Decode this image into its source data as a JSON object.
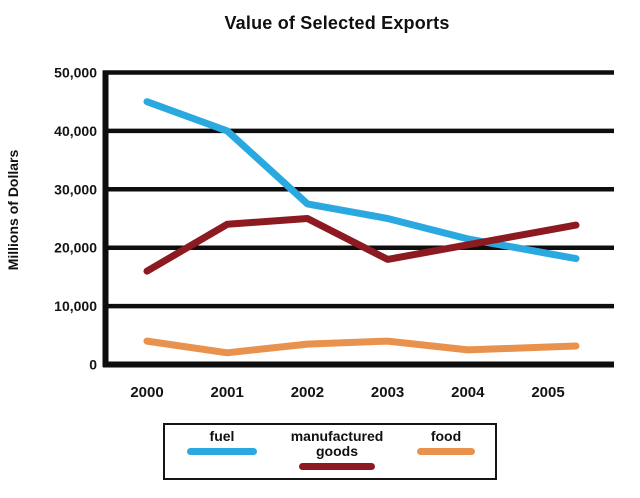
{
  "chart_data": {
    "type": "line",
    "title": "Value of Selected Exports",
    "xlabel": "",
    "ylabel": "Millions of Dollars",
    "x": [
      2000,
      2001,
      2002,
      2003,
      2004,
      2005
    ],
    "x_tick_labels": [
      "2000",
      "2001",
      "2002",
      "2003",
      "2004",
      "2005"
    ],
    "y_ticks": [
      0,
      10000,
      20000,
      30000,
      40000,
      50000
    ],
    "y_tick_labels": [
      "0",
      "10,000",
      "20,000",
      "30,000",
      "40,000",
      "50,000"
    ],
    "ylim": [
      0,
      50000
    ],
    "grid": "horizontal-black-gridlines",
    "legend_position": "bottom",
    "background_color": "#ffffff",
    "axis_color": "#0e0e0e",
    "series": [
      {
        "name": "fuel",
        "color": "#29A9E0",
        "values": [
          45000,
          40000,
          27500,
          25000,
          21500,
          19000
        ]
      },
      {
        "name": "manufactured goods",
        "color": "#8C1A20",
        "values": [
          16000,
          24000,
          25000,
          18000,
          20500,
          23000
        ]
      },
      {
        "name": "food",
        "color": "#E8924E",
        "values": [
          4000,
          2000,
          3500,
          4000,
          2500,
          3000
        ]
      }
    ]
  }
}
